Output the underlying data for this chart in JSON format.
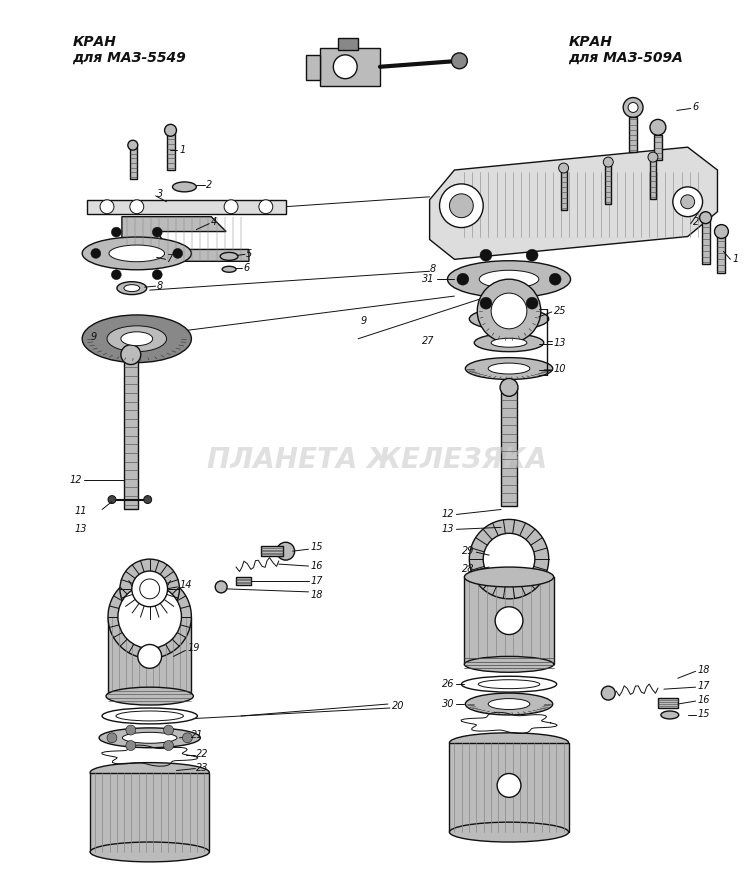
{
  "title_left": "КРАН\nдля МАЗ-5549",
  "title_right": "КРАН\nдля МАЗ-509А",
  "watermark": "ПЛАНЕТА ЖЕЛЕЗЯКА",
  "bg_color": "#ffffff",
  "fig_width": 7.54,
  "fig_height": 8.81,
  "dpi": 100
}
